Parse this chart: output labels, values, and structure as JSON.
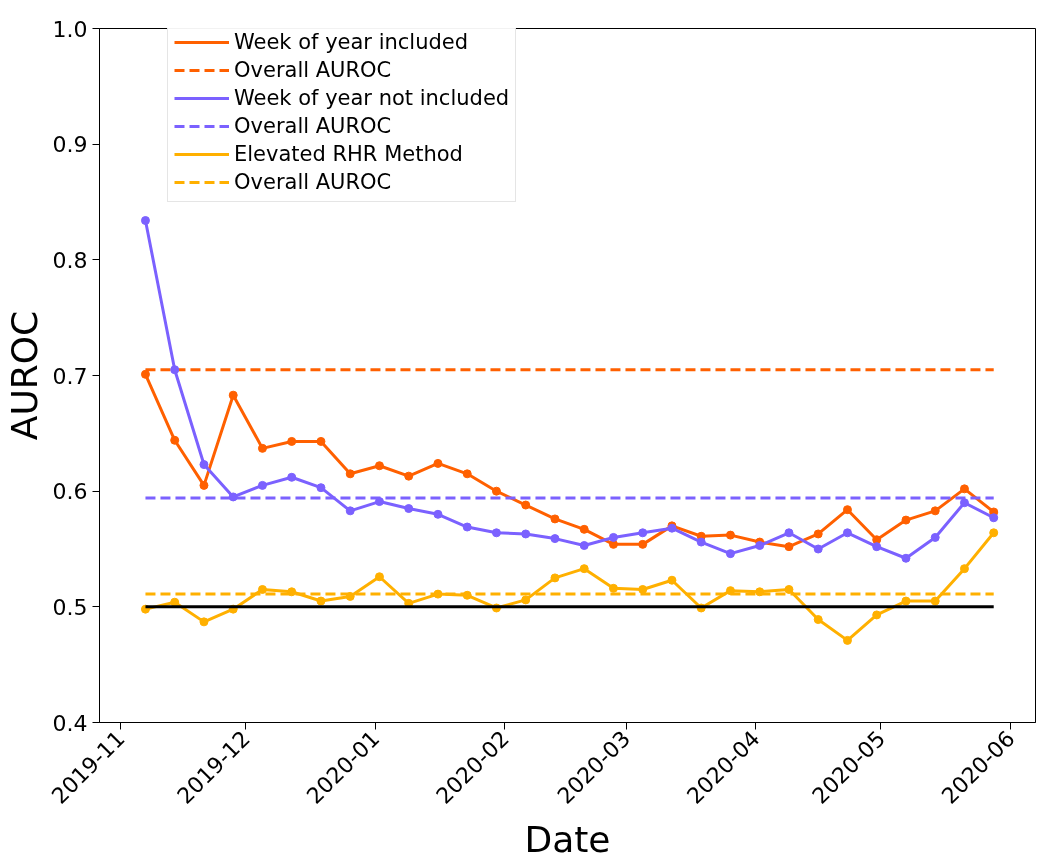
{
  "chart_data": {
    "type": "line",
    "xlabel": "Date",
    "ylabel": "AUROC",
    "x": [
      "2019-11-07",
      "2019-11-14",
      "2019-11-21",
      "2019-11-28",
      "2019-12-05",
      "2019-12-12",
      "2019-12-19",
      "2019-12-26",
      "2020-01-02",
      "2020-01-09",
      "2020-01-16",
      "2020-01-23",
      "2020-01-30",
      "2020-02-06",
      "2020-02-13",
      "2020-02-20",
      "2020-02-27",
      "2020-03-05",
      "2020-03-12",
      "2020-03-19",
      "2020-03-26",
      "2020-04-02",
      "2020-04-09",
      "2020-04-16",
      "2020-04-23",
      "2020-04-30",
      "2020-05-07",
      "2020-05-14",
      "2020-05-21",
      "2020-05-28"
    ],
    "series": [
      {
        "name": "Week of year included",
        "color": "#ff6000",
        "marker": "circle",
        "line_style": "solid",
        "values": [
          0.701,
          0.644,
          0.605,
          0.683,
          0.637,
          0.643,
          0.643,
          0.615,
          0.622,
          0.613,
          0.624,
          0.615,
          0.6,
          0.588,
          0.576,
          0.567,
          0.554,
          0.554,
          0.57,
          0.561,
          0.562,
          0.556,
          0.552,
          0.563,
          0.584,
          0.558,
          0.575,
          0.583,
          0.602,
          0.582
        ]
      },
      {
        "name": "Overall AUROC",
        "color": "#ff6000",
        "marker": "none",
        "line_style": "dashed",
        "x": [
          "2019-11-07",
          "2020-05-28"
        ],
        "values": [
          0.705,
          0.705
        ]
      },
      {
        "name": "Week of year not included",
        "color": "#7b61ff",
        "marker": "circle",
        "line_style": "solid",
        "values": [
          0.834,
          0.705,
          0.623,
          0.595,
          0.605,
          0.612,
          0.603,
          0.583,
          0.591,
          0.585,
          0.58,
          0.569,
          0.564,
          0.563,
          0.559,
          0.553,
          0.56,
          0.564,
          0.568,
          0.556,
          0.546,
          0.553,
          0.564,
          0.55,
          0.564,
          0.552,
          0.542,
          0.56,
          0.59,
          0.577
        ]
      },
      {
        "name": "Overall AUROC",
        "color": "#7b61ff",
        "marker": "none",
        "line_style": "dashed",
        "x": [
          "2019-11-07",
          "2020-05-28"
        ],
        "values": [
          0.594,
          0.594
        ]
      },
      {
        "name": "Elevated RHR Method",
        "color": "#ffb000",
        "marker": "circle",
        "line_style": "solid",
        "values": [
          0.498,
          0.504,
          0.487,
          0.498,
          0.515,
          0.513,
          0.505,
          0.509,
          0.526,
          0.503,
          0.511,
          0.51,
          0.499,
          0.506,
          0.525,
          0.533,
          0.516,
          0.515,
          0.523,
          0.499,
          0.514,
          0.513,
          0.515,
          0.489,
          0.471,
          0.493,
          0.505,
          0.505,
          0.533,
          0.564
        ]
      },
      {
        "name": "Overall AUROC",
        "color": "#ffb000",
        "marker": "none",
        "line_style": "dashed",
        "x": [
          "2019-11-07",
          "2020-05-28"
        ],
        "values": [
          0.511,
          0.511
        ]
      },
      {
        "color": "#000000",
        "marker": "none",
        "line_style": "solid",
        "x": [
          "2019-11-07",
          "2020-05-28"
        ],
        "values": [
          0.5,
          0.5
        ]
      }
    ],
    "xlim": [
      "2019-10-27",
      "2020-06-07"
    ],
    "xticks": [
      "2019-11",
      "2019-12",
      "2020-01",
      "2020-02",
      "2020-03",
      "2020-04",
      "2020-05",
      "2020-06"
    ],
    "ylim": [
      0.4,
      1.0
    ],
    "yticks": [
      0.4,
      0.5,
      0.6,
      0.7,
      0.8,
      0.9,
      {
        "value": 1.0,
        "label": "1.0"
      }
    ],
    "legend": "top left",
    "grid": false
  }
}
